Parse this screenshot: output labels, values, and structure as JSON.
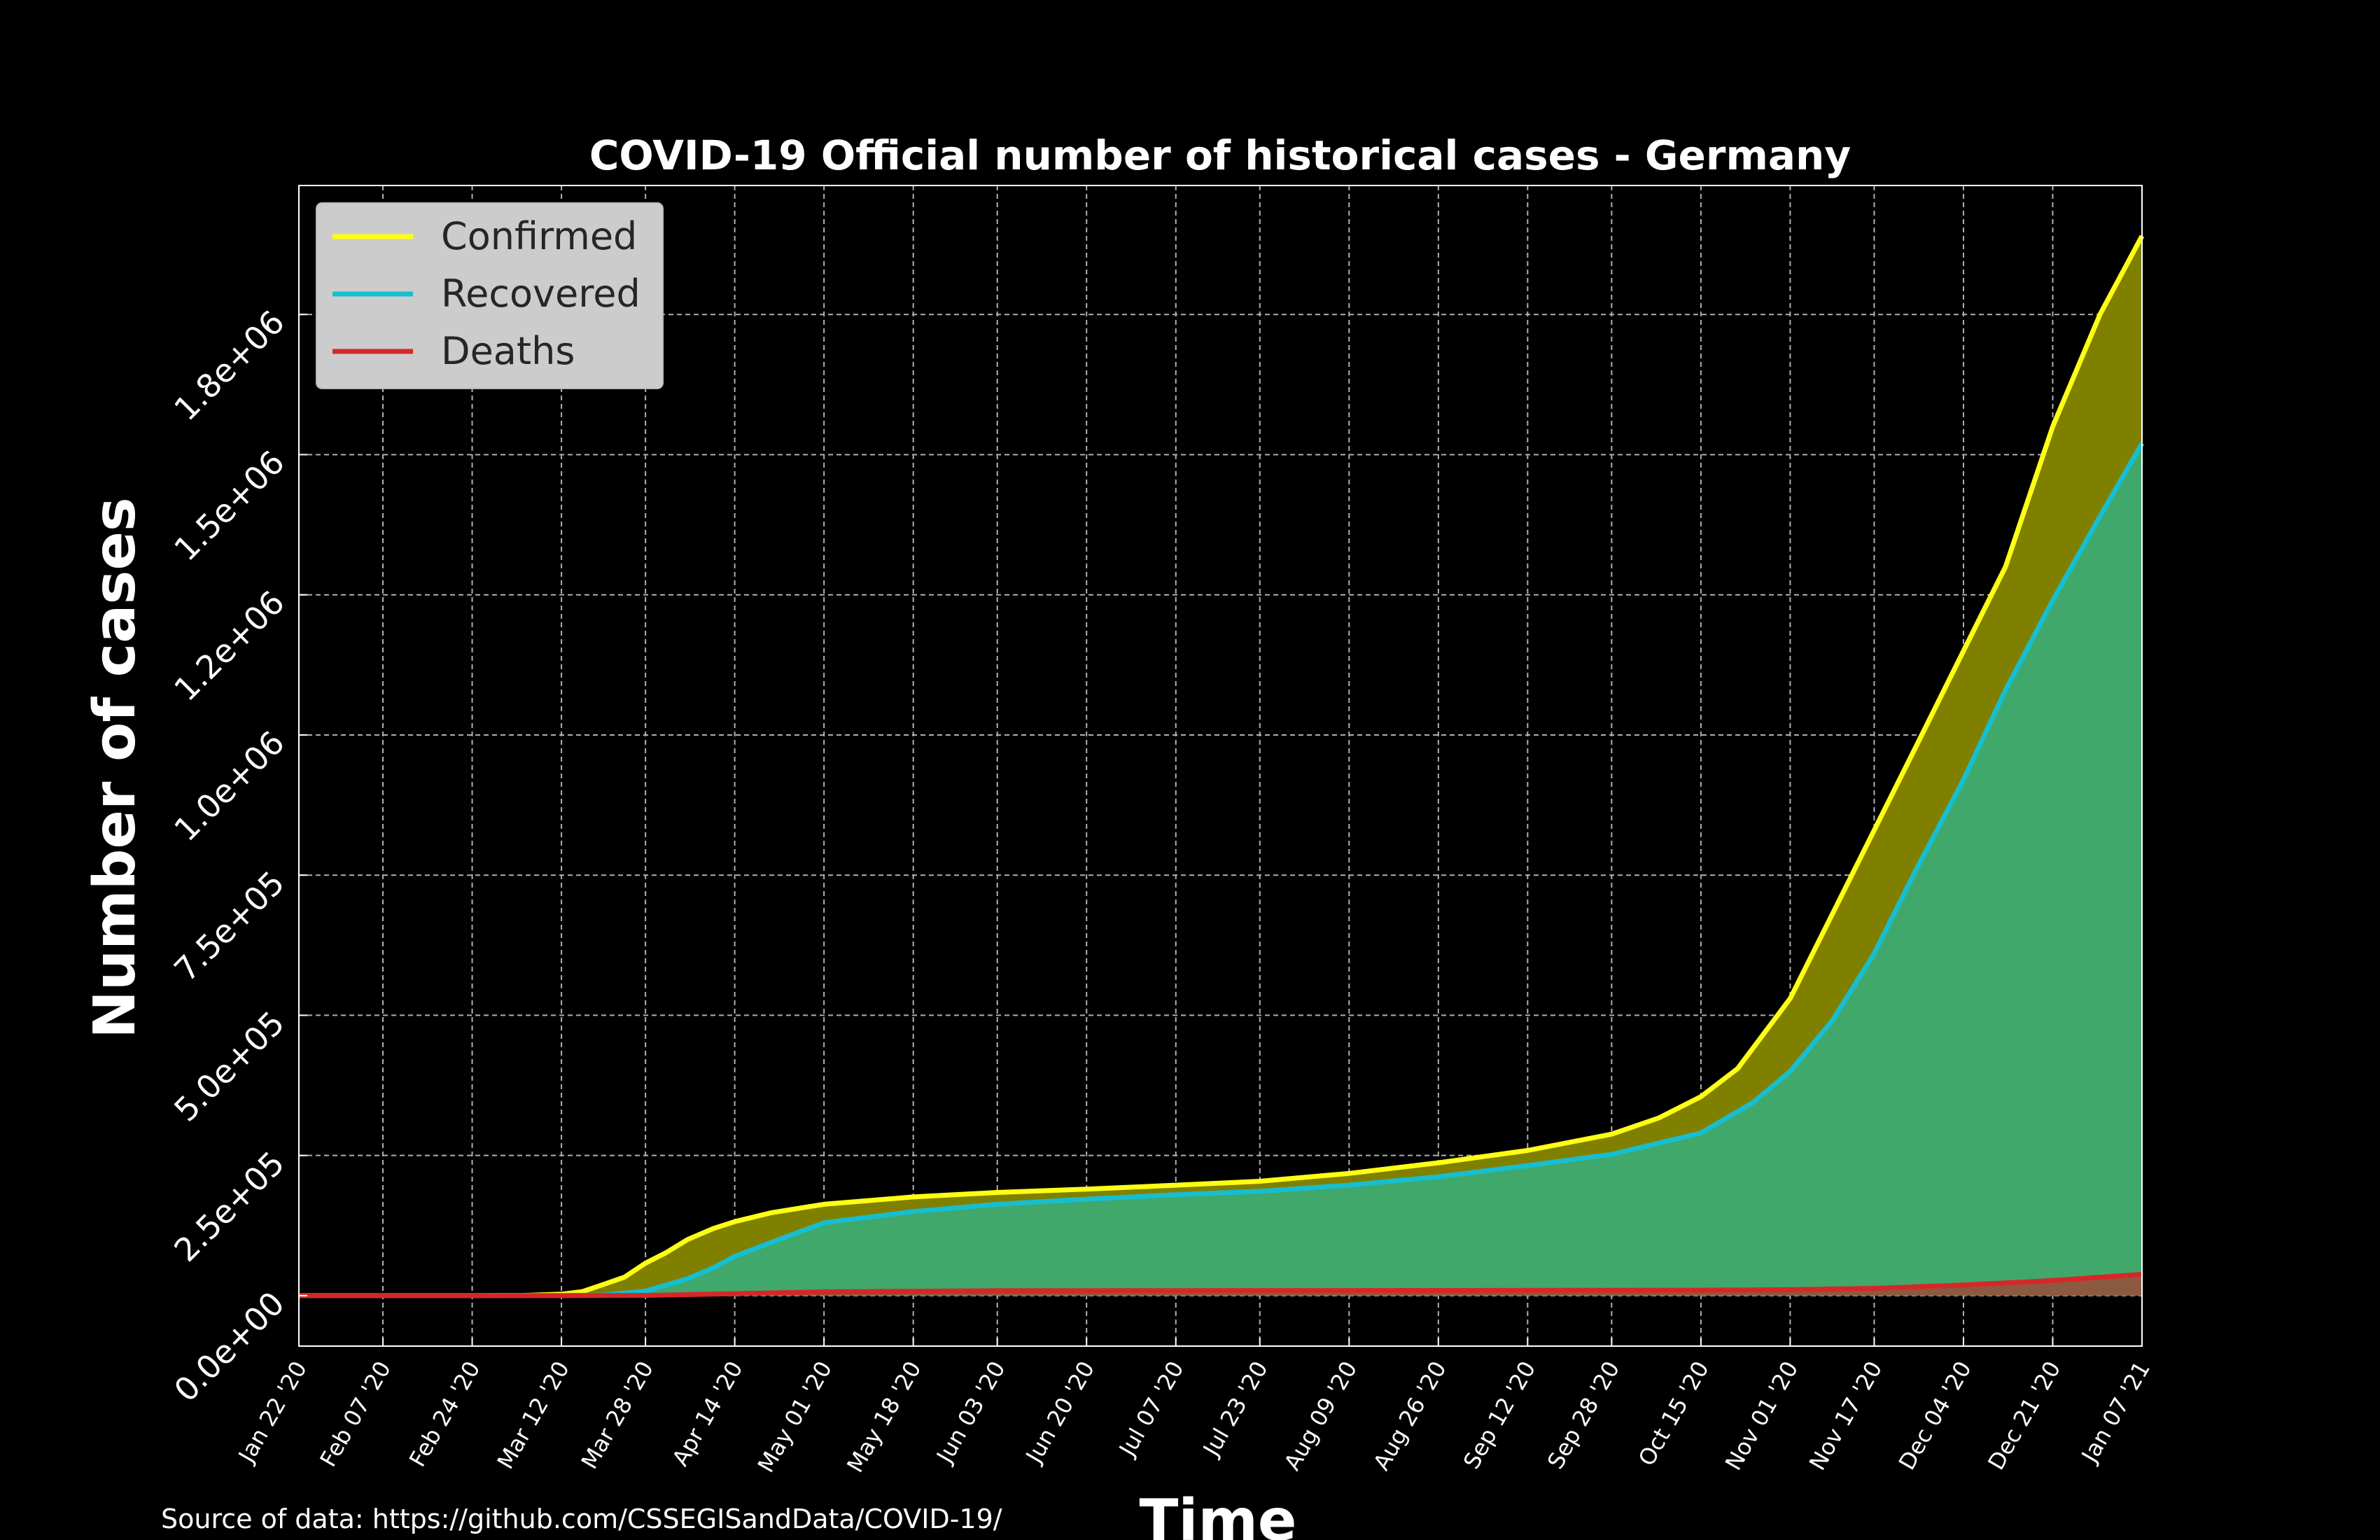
{
  "source_text": "Source of data: https://github.com/CSSEGISandData/COVID-19/",
  "chart_data": {
    "type": "area",
    "title": "COVID-19 Official number of historical cases - Germany",
    "xlabel": "Time",
    "ylabel": "Number of cases",
    "grid": true,
    "legend_position": "top-left",
    "x_ticks": [
      "Jan 22 '20",
      "Feb 07 '20",
      "Feb 24 '20",
      "Mar 12 '20",
      "Mar 28 '20",
      "Apr 14 '20",
      "May 01 '20",
      "May 18 '20",
      "Jun 03 '20",
      "Jun 20 '20",
      "Jul 07 '20",
      "Jul 23 '20",
      "Aug 09 '20",
      "Aug 26 '20",
      "Sep 12 '20",
      "Sep 28 '20",
      "Oct 15 '20",
      "Nov 01 '20",
      "Nov 17 '20",
      "Dec 04 '20",
      "Dec 21 '20",
      "Jan 07 '21"
    ],
    "y_ticks": [
      "0.0e+00",
      "2.5e+05",
      "5.0e+05",
      "7.5e+05",
      "1.0e+06",
      "1.2e+06",
      "1.5e+06",
      "1.8e+06"
    ],
    "y_tick_values": [
      0,
      250000,
      500000,
      750000,
      1000000,
      1250000,
      1500000,
      1750000
    ],
    "ylim": [
      -90000,
      1980000
    ],
    "xlim": [
      "Jan 22 '20",
      "Jan 07 '21"
    ],
    "series": [
      {
        "name": "Confirmed",
        "line_color": "#ffff14",
        "fill_color": "#808000",
        "points": [
          [
            "Jan 22 '20",
            0
          ],
          [
            "Feb 24 '20",
            16
          ],
          [
            "Mar 05 '20",
            500
          ],
          [
            "Mar 12 '20",
            2700
          ],
          [
            "Mar 16 '20",
            7300
          ],
          [
            "Mar 20 '20",
            20000
          ],
          [
            "Mar 24 '20",
            33000
          ],
          [
            "Mar 28 '20",
            58000
          ],
          [
            "Apr 01 '20",
            77000
          ],
          [
            "Apr 05 '20",
            100000
          ],
          [
            "Apr 10 '20",
            120000
          ],
          [
            "Apr 14 '20",
            132000
          ],
          [
            "Apr 21 '20",
            148000
          ],
          [
            "May 01 '20",
            163000
          ],
          [
            "May 18 '20",
            176000
          ],
          [
            "Jun 03 '20",
            184000
          ],
          [
            "Jun 20 '20",
            190000
          ],
          [
            "Jul 07 '20",
            197000
          ],
          [
            "Jul 23 '20",
            204000
          ],
          [
            "Aug 09 '20",
            218000
          ],
          [
            "Aug 26 '20",
            237000
          ],
          [
            "Sep 12 '20",
            259000
          ],
          [
            "Sep 28 '20",
            288000
          ],
          [
            "Oct 07 '20",
            317000
          ],
          [
            "Oct 15 '20",
            355000
          ],
          [
            "Oct 22 '20",
            405000
          ],
          [
            "Nov 01 '20",
            530000
          ],
          [
            "Nov 09 '20",
            680000
          ],
          [
            "Nov 17 '20",
            830000
          ],
          [
            "Nov 25 '20",
            980000
          ],
          [
            "Dec 04 '20",
            1150000
          ],
          [
            "Dec 12 '20",
            1300000
          ],
          [
            "Dec 21 '20",
            1550000
          ],
          [
            "Dec 30 '20",
            1750000
          ],
          [
            "Jan 07 '21",
            1890000
          ]
        ]
      },
      {
        "name": "Recovered",
        "line_color": "#17becf",
        "fill_color": "#40a86a",
        "points": [
          [
            "Jan 22 '20",
            0
          ],
          [
            "Mar 12 '20",
            100
          ],
          [
            "Mar 20 '20",
            1000
          ],
          [
            "Mar 28 '20",
            8000
          ],
          [
            "Apr 05 '20",
            30000
          ],
          [
            "Apr 10 '20",
            50000
          ],
          [
            "Apr 14 '20",
            70000
          ],
          [
            "Apr 21 '20",
            95000
          ],
          [
            "May 01 '20",
            130000
          ],
          [
            "May 18 '20",
            150000
          ],
          [
            "Jun 03 '20",
            163000
          ],
          [
            "Jun 20 '20",
            172000
          ],
          [
            "Jul 07 '20",
            180000
          ],
          [
            "Jul 23 '20",
            186000
          ],
          [
            "Aug 09 '20",
            197000
          ],
          [
            "Aug 26 '20",
            212000
          ],
          [
            "Sep 12 '20",
            232000
          ],
          [
            "Sep 28 '20",
            252000
          ],
          [
            "Oct 15 '20",
            290000
          ],
          [
            "Oct 25 '20",
            345000
          ],
          [
            "Nov 01 '20",
            400000
          ],
          [
            "Nov 09 '20",
            490000
          ],
          [
            "Nov 17 '20",
            610000
          ],
          [
            "Nov 25 '20",
            760000
          ],
          [
            "Dec 04 '20",
            920000
          ],
          [
            "Dec 12 '20",
            1080000
          ],
          [
            "Dec 21 '20",
            1240000
          ],
          [
            "Dec 30 '20",
            1390000
          ],
          [
            "Jan 07 '21",
            1520000
          ]
        ]
      },
      {
        "name": "Deaths",
        "line_color": "#d62728",
        "fill_color": "#8b5a40",
        "points": [
          [
            "Jan 22 '20",
            0
          ],
          [
            "Mar 12 '20",
            6
          ],
          [
            "Mar 28 '20",
            400
          ],
          [
            "Apr 14 '20",
            3500
          ],
          [
            "May 01 '20",
            6700
          ],
          [
            "Jun 03 '20",
            8700
          ],
          [
            "Jul 07 '20",
            9000
          ],
          [
            "Aug 26 '20",
            9300
          ],
          [
            "Sep 28 '20",
            9500
          ],
          [
            "Oct 15 '20",
            9800
          ],
          [
            "Nov 01 '20",
            10600
          ],
          [
            "Nov 17 '20",
            13000
          ],
          [
            "Dec 04 '20",
            19000
          ],
          [
            "Dec 21 '20",
            27000
          ],
          [
            "Jan 07 '21",
            38000
          ]
        ]
      }
    ]
  }
}
